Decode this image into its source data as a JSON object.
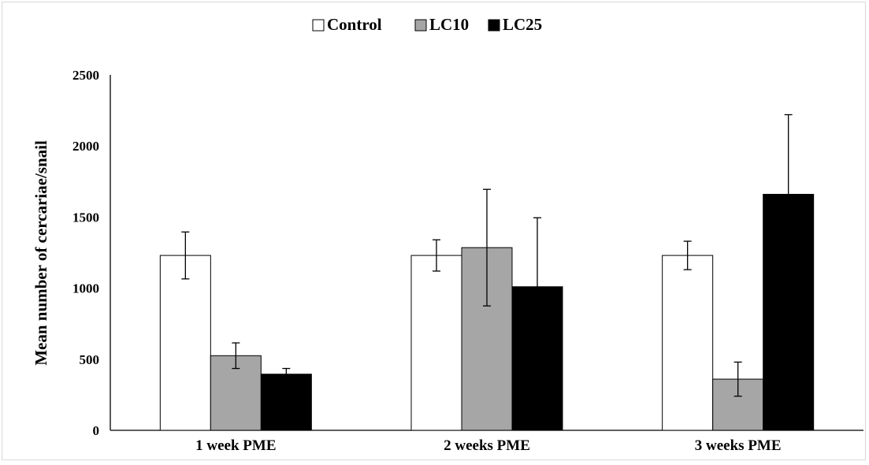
{
  "chart_data": {
    "type": "bar",
    "categories": [
      "1 week PME",
      "2 weeks PME",
      "3 weeks PME"
    ],
    "series": [
      {
        "name": "Control",
        "values": [
          1230,
          1230,
          1230
        ],
        "errors": [
          165,
          110,
          100
        ],
        "color": "#ffffff"
      },
      {
        "name": "LC10",
        "values": [
          525,
          1285,
          360
        ],
        "errors": [
          90,
          410,
          120
        ],
        "color": "#a6a6a6"
      },
      {
        "name": "LC25",
        "values": [
          395,
          1010,
          1660
        ],
        "errors": [
          40,
          485,
          560
        ],
        "color": "#000000"
      }
    ],
    "title": "",
    "xlabel": "",
    "ylabel": "Mean number of cercariae/snail",
    "ylim": [
      0,
      2500
    ],
    "yticks": [
      0,
      500,
      1000,
      1500,
      2000,
      2500
    ],
    "grid": false,
    "legend_position": "top-center",
    "legend_marker": "□■"
  }
}
